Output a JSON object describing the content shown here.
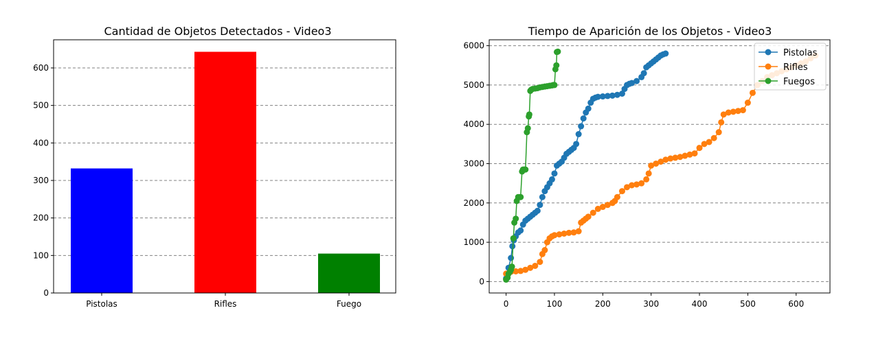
{
  "chart_data": [
    {
      "type": "bar",
      "title": "Cantidad de Objetos Detectados - Video3",
      "xlabel": "",
      "ylabel": "",
      "categories": [
        "Pistolas",
        "Rifles",
        "Fuego"
      ],
      "values": [
        332,
        643,
        105
      ],
      "colors": [
        "#0000ff",
        "#ff0000",
        "#008000"
      ],
      "ylim": [
        0,
        675
      ],
      "yticks": [
        0,
        100,
        200,
        300,
        400,
        500,
        600
      ],
      "grid": "y-dashed"
    },
    {
      "type": "line",
      "title": "Tiempo de Aparición de los Objetos - Video3",
      "xlabel": "",
      "ylabel": "",
      "xlim": [
        -35,
        670
      ],
      "ylim": [
        -290,
        6150
      ],
      "xticks": [
        0,
        100,
        200,
        300,
        400,
        500,
        600
      ],
      "yticks": [
        0,
        1000,
        2000,
        3000,
        4000,
        5000,
        6000
      ],
      "grid": "y-dashed",
      "legend": "top-right",
      "series": [
        {
          "name": "Pistolas",
          "color": "#1f77b4",
          "x": [
            0,
            5,
            10,
            13,
            16,
            20,
            25,
            30,
            35,
            40,
            45,
            50,
            55,
            60,
            65,
            70,
            75,
            80,
            85,
            90,
            95,
            100,
            105,
            110,
            115,
            120,
            125,
            130,
            135,
            140,
            145,
            150,
            155,
            160,
            165,
            170,
            175,
            180,
            185,
            190,
            200,
            210,
            220,
            230,
            240,
            245,
            250,
            255,
            260,
            270,
            280,
            285,
            290,
            295,
            300,
            305,
            310,
            315,
            320,
            325,
            330
          ],
          "values": [
            80,
            350,
            600,
            900,
            1050,
            1150,
            1250,
            1300,
            1450,
            1550,
            1600,
            1650,
            1700,
            1750,
            1800,
            1950,
            2150,
            2300,
            2400,
            2500,
            2600,
            2750,
            2950,
            3000,
            3050,
            3150,
            3250,
            3300,
            3350,
            3400,
            3500,
            3750,
            3950,
            4150,
            4300,
            4400,
            4550,
            4650,
            4680,
            4700,
            4710,
            4720,
            4730,
            4750,
            4780,
            4900,
            5000,
            5030,
            5050,
            5100,
            5200,
            5300,
            5450,
            5500,
            5550,
            5600,
            5650,
            5700,
            5750,
            5780,
            5800
          ]
        },
        {
          "name": "Rifles",
          "color": "#ff7f0e",
          "x": [
            0,
            10,
            20,
            30,
            40,
            50,
            60,
            70,
            75,
            80,
            85,
            90,
            95,
            100,
            110,
            120,
            130,
            140,
            150,
            155,
            160,
            165,
            170,
            180,
            190,
            200,
            210,
            220,
            225,
            230,
            240,
            250,
            260,
            270,
            280,
            290,
            295,
            300,
            310,
            320,
            330,
            340,
            350,
            360,
            370,
            380,
            390,
            400,
            410,
            420,
            430,
            440,
            445,
            450,
            460,
            470,
            480,
            490,
            500,
            510,
            520,
            530,
            540,
            550,
            560,
            570,
            580,
            590,
            600,
            610,
            620,
            630,
            640
          ],
          "values": [
            200,
            250,
            260,
            270,
            300,
            350,
            400,
            500,
            700,
            800,
            1000,
            1100,
            1150,
            1180,
            1200,
            1220,
            1240,
            1250,
            1280,
            1500,
            1550,
            1600,
            1650,
            1750,
            1850,
            1900,
            1950,
            2000,
            2050,
            2150,
            2300,
            2400,
            2450,
            2470,
            2500,
            2600,
            2750,
            2950,
            3000,
            3050,
            3100,
            3130,
            3150,
            3170,
            3200,
            3230,
            3260,
            3400,
            3500,
            3550,
            3650,
            3800,
            4050,
            4250,
            4300,
            4320,
            4340,
            4360,
            4550,
            4800,
            5000,
            5100,
            5200,
            5250,
            5300,
            5350,
            5400,
            5450,
            5500,
            5550,
            5600,
            5680,
            5750
          ]
        },
        {
          "name": "Fuegos",
          "color": "#2ca02c",
          "x": [
            0,
            3,
            5,
            8,
            10,
            12,
            15,
            17,
            20,
            22,
            25,
            28,
            30,
            33,
            35,
            38,
            40,
            43,
            45,
            47,
            48,
            50,
            52,
            55,
            60,
            65,
            70,
            75,
            80,
            85,
            90,
            95,
            98,
            100,
            102,
            104,
            105,
            107
          ],
          "values": [
            50,
            100,
            200,
            250,
            300,
            380,
            1100,
            1500,
            1600,
            2050,
            2150,
            2150,
            2150,
            2800,
            2850,
            2850,
            2850,
            3800,
            3900,
            4200,
            4250,
            4850,
            4880,
            4900,
            4910,
            4920,
            4940,
            4950,
            4960,
            4970,
            4980,
            4990,
            5000,
            5000,
            5400,
            5500,
            5840,
            5850
          ]
        }
      ]
    }
  ]
}
